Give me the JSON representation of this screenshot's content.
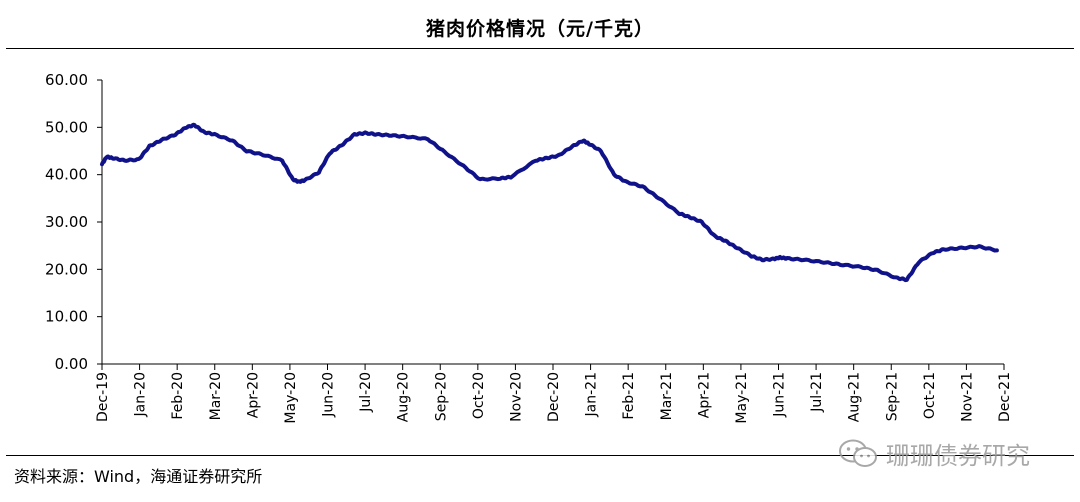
{
  "header": {
    "title": "猪肉价格情况（元/千克）"
  },
  "footer": {
    "source": "资料来源：Wind，海通证券研究所"
  },
  "watermark": {
    "text": "珊珊债券研究",
    "icon": "wechat-icon"
  },
  "chart_data": {
    "type": "line",
    "title": "猪肉价格情况（元/千克）",
    "xlabel": "",
    "ylabel": "",
    "ylim": [
      0,
      60
    ],
    "yticks": [
      "60.00",
      "50.00",
      "40.00",
      "30.00",
      "20.00",
      "10.00",
      "0.00"
    ],
    "x_tick_labels": [
      "Dec-19",
      "Jan-20",
      "Feb-20",
      "Mar-20",
      "Apr-20",
      "May-20",
      "Jun-20",
      "Jul-20",
      "Aug-20",
      "Sep-20",
      "Oct-20",
      "Nov-20",
      "Dec-20",
      "Jan-21",
      "Feb-21",
      "Mar-21",
      "Apr-21",
      "May-21",
      "Jun-21",
      "Jul-21",
      "Aug-21",
      "Sep-21",
      "Oct-21",
      "Nov-21",
      "Dec-21"
    ],
    "grid": false,
    "legend": "none",
    "line_color": "#10128a",
    "series": [
      {
        "x": [
          "2019-12-01",
          "2019-12-05",
          "2019-12-10",
          "2019-12-20",
          "2020-01-01",
          "2020-01-10",
          "2020-01-20",
          "2020-02-01",
          "2020-02-10",
          "2020-02-17",
          "2020-02-25",
          "2020-03-05",
          "2020-03-20",
          "2020-04-01",
          "2020-04-15",
          "2020-05-01",
          "2020-05-10",
          "2020-05-15",
          "2020-05-20",
          "2020-06-01",
          "2020-06-10",
          "2020-06-20",
          "2020-07-01",
          "2020-07-10",
          "2020-07-20",
          "2020-08-01",
          "2020-08-15",
          "2020-09-01",
          "2020-09-15",
          "2020-10-01",
          "2020-10-15",
          "2020-11-01",
          "2020-11-10",
          "2020-12-01",
          "2020-12-10",
          "2020-12-20",
          "2021-01-01",
          "2021-01-10",
          "2021-01-15",
          "2021-01-25",
          "2021-02-05",
          "2021-02-15",
          "2021-03-01",
          "2021-03-15",
          "2021-04-01",
          "2021-04-10",
          "2021-04-20",
          "2021-05-01",
          "2021-05-10",
          "2021-05-20",
          "2021-06-01",
          "2021-06-10",
          "2021-06-20",
          "2021-06-25",
          "2021-07-01",
          "2021-07-15",
          "2021-08-01",
          "2021-08-15",
          "2021-09-01",
          "2021-09-15",
          "2021-10-01",
          "2021-10-10",
          "2021-10-20",
          "2021-11-01",
          "2021-11-10",
          "2021-11-25",
          "2021-12-10",
          "2021-12-25"
        ],
        "y": [
          42.2,
          43.8,
          43.5,
          43.0,
          43.2,
          46.0,
          47.3,
          48.5,
          50.0,
          50.5,
          49.0,
          48.5,
          47.2,
          45.0,
          44.2,
          43.0,
          39.0,
          38.5,
          38.8,
          40.5,
          44.5,
          46.2,
          48.5,
          48.8,
          48.5,
          48.3,
          48.0,
          47.5,
          44.8,
          41.8,
          39.0,
          39.2,
          39.5,
          43.0,
          43.5,
          44.0,
          46.0,
          47.2,
          46.5,
          45.0,
          40.0,
          38.5,
          37.5,
          35.0,
          31.8,
          31.0,
          30.0,
          27.0,
          26.0,
          24.5,
          22.8,
          22.0,
          22.2,
          22.5,
          22.3,
          22.0,
          21.5,
          21.0,
          20.5,
          19.8,
          18.2,
          17.8,
          21.5,
          23.5,
          24.2,
          24.5,
          24.8,
          24.0
        ]
      }
    ]
  }
}
